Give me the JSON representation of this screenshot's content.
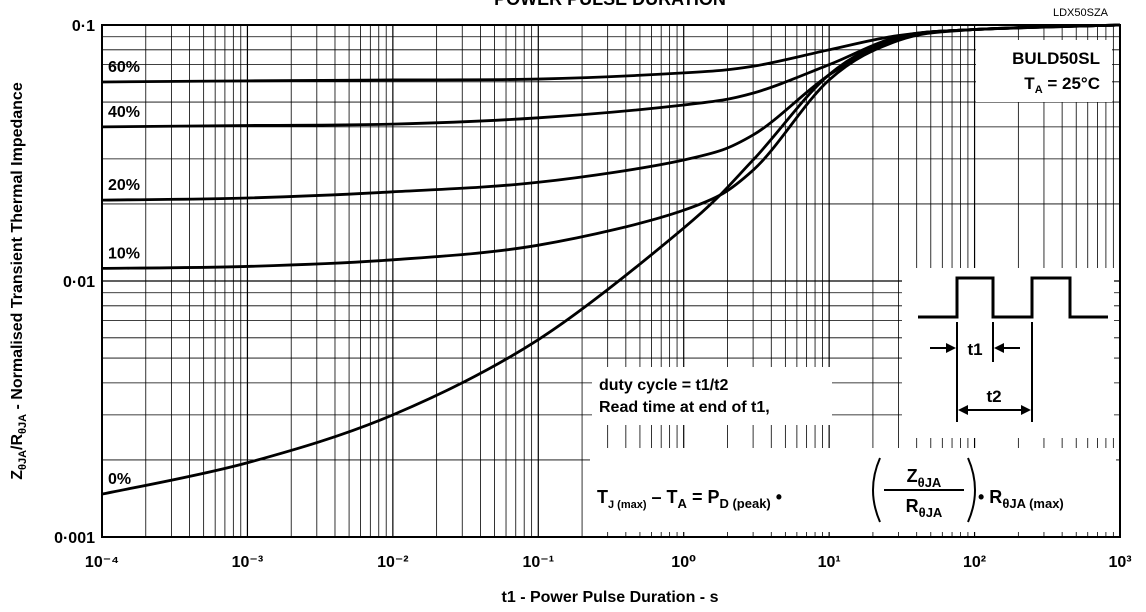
{
  "chart_data": {
    "type": "line",
    "title": "POWER PULSE DURATION",
    "code": "LDX50SZA",
    "x_label": "t1 - Power Pulse Duration - s",
    "y_label": [
      "Z",
      "θJA",
      "/R",
      "θJA",
      " - Normalised Transient Thermal Impedance"
    ],
    "log_x": true,
    "log_y": true,
    "grid": true,
    "minor_grid": true,
    "xlim": [
      0.0001,
      1000
    ],
    "ylim": [
      0.001,
      0.1
    ],
    "xticks": [
      {
        "value": 0.0001,
        "label": "10⁻⁴"
      },
      {
        "value": 0.001,
        "label": "10⁻³"
      },
      {
        "value": 0.01,
        "label": "10⁻²"
      },
      {
        "value": 0.1,
        "label": "10⁻¹"
      },
      {
        "value": 1,
        "label": "10⁰"
      },
      {
        "value": 10,
        "label": "10¹"
      },
      {
        "value": 100,
        "label": "10²"
      },
      {
        "value": 1000,
        "label": "10³"
      }
    ],
    "yticks": [
      {
        "value": 0.001,
        "label": "0·001"
      },
      {
        "value": 0.01,
        "label": "0·01"
      },
      {
        "value": 0.1,
        "label": "0·1"
      }
    ],
    "x": [
      0.0001,
      0.001,
      0.01,
      0.1,
      1,
      3,
      10,
      30,
      100,
      1000
    ],
    "series": [
      {
        "name": "0%",
        "color": "#000000",
        "values": [
          0.00147,
          0.00195,
          0.003,
          0.0059,
          0.0161,
          0.0297,
          0.064,
          0.089,
          0.096,
          0.1
        ]
      },
      {
        "name": "10%",
        "color": "#000000",
        "values": [
          0.0112,
          0.0114,
          0.0121,
          0.0138,
          0.0189,
          0.0271,
          0.061,
          0.087,
          0.096,
          0.1
        ]
      },
      {
        "name": "20%",
        "color": "#000000",
        "values": [
          0.0207,
          0.0211,
          0.0223,
          0.0243,
          0.0297,
          0.0372,
          0.0638,
          0.089,
          0.096,
          0.1
        ]
      },
      {
        "name": "40%",
        "color": "#000000",
        "values": [
          0.04,
          0.0405,
          0.041,
          0.0434,
          0.0487,
          0.0542,
          0.07,
          0.09,
          0.096,
          0.1
        ]
      },
      {
        "name": "60%",
        "color": "#000000",
        "values": [
          0.0599,
          0.0605,
          0.061,
          0.0615,
          0.065,
          0.069,
          0.08,
          0.091,
          0.096,
          0.1
        ]
      }
    ],
    "part": "BULD50SL",
    "ambient": [
      "T",
      "A",
      " = 25°C"
    ],
    "notes": [
      "duty cycle = t1/t2",
      "Read time at end of t1,"
    ],
    "diagram": [
      "t1",
      "t2"
    ],
    "formula": [
      "T",
      "J (max)",
      " – T",
      "A",
      " = P",
      "D (peak)",
      " •",
      "Z",
      "θJA",
      "R",
      "θJA",
      "• R",
      "θJA (max)"
    ]
  }
}
